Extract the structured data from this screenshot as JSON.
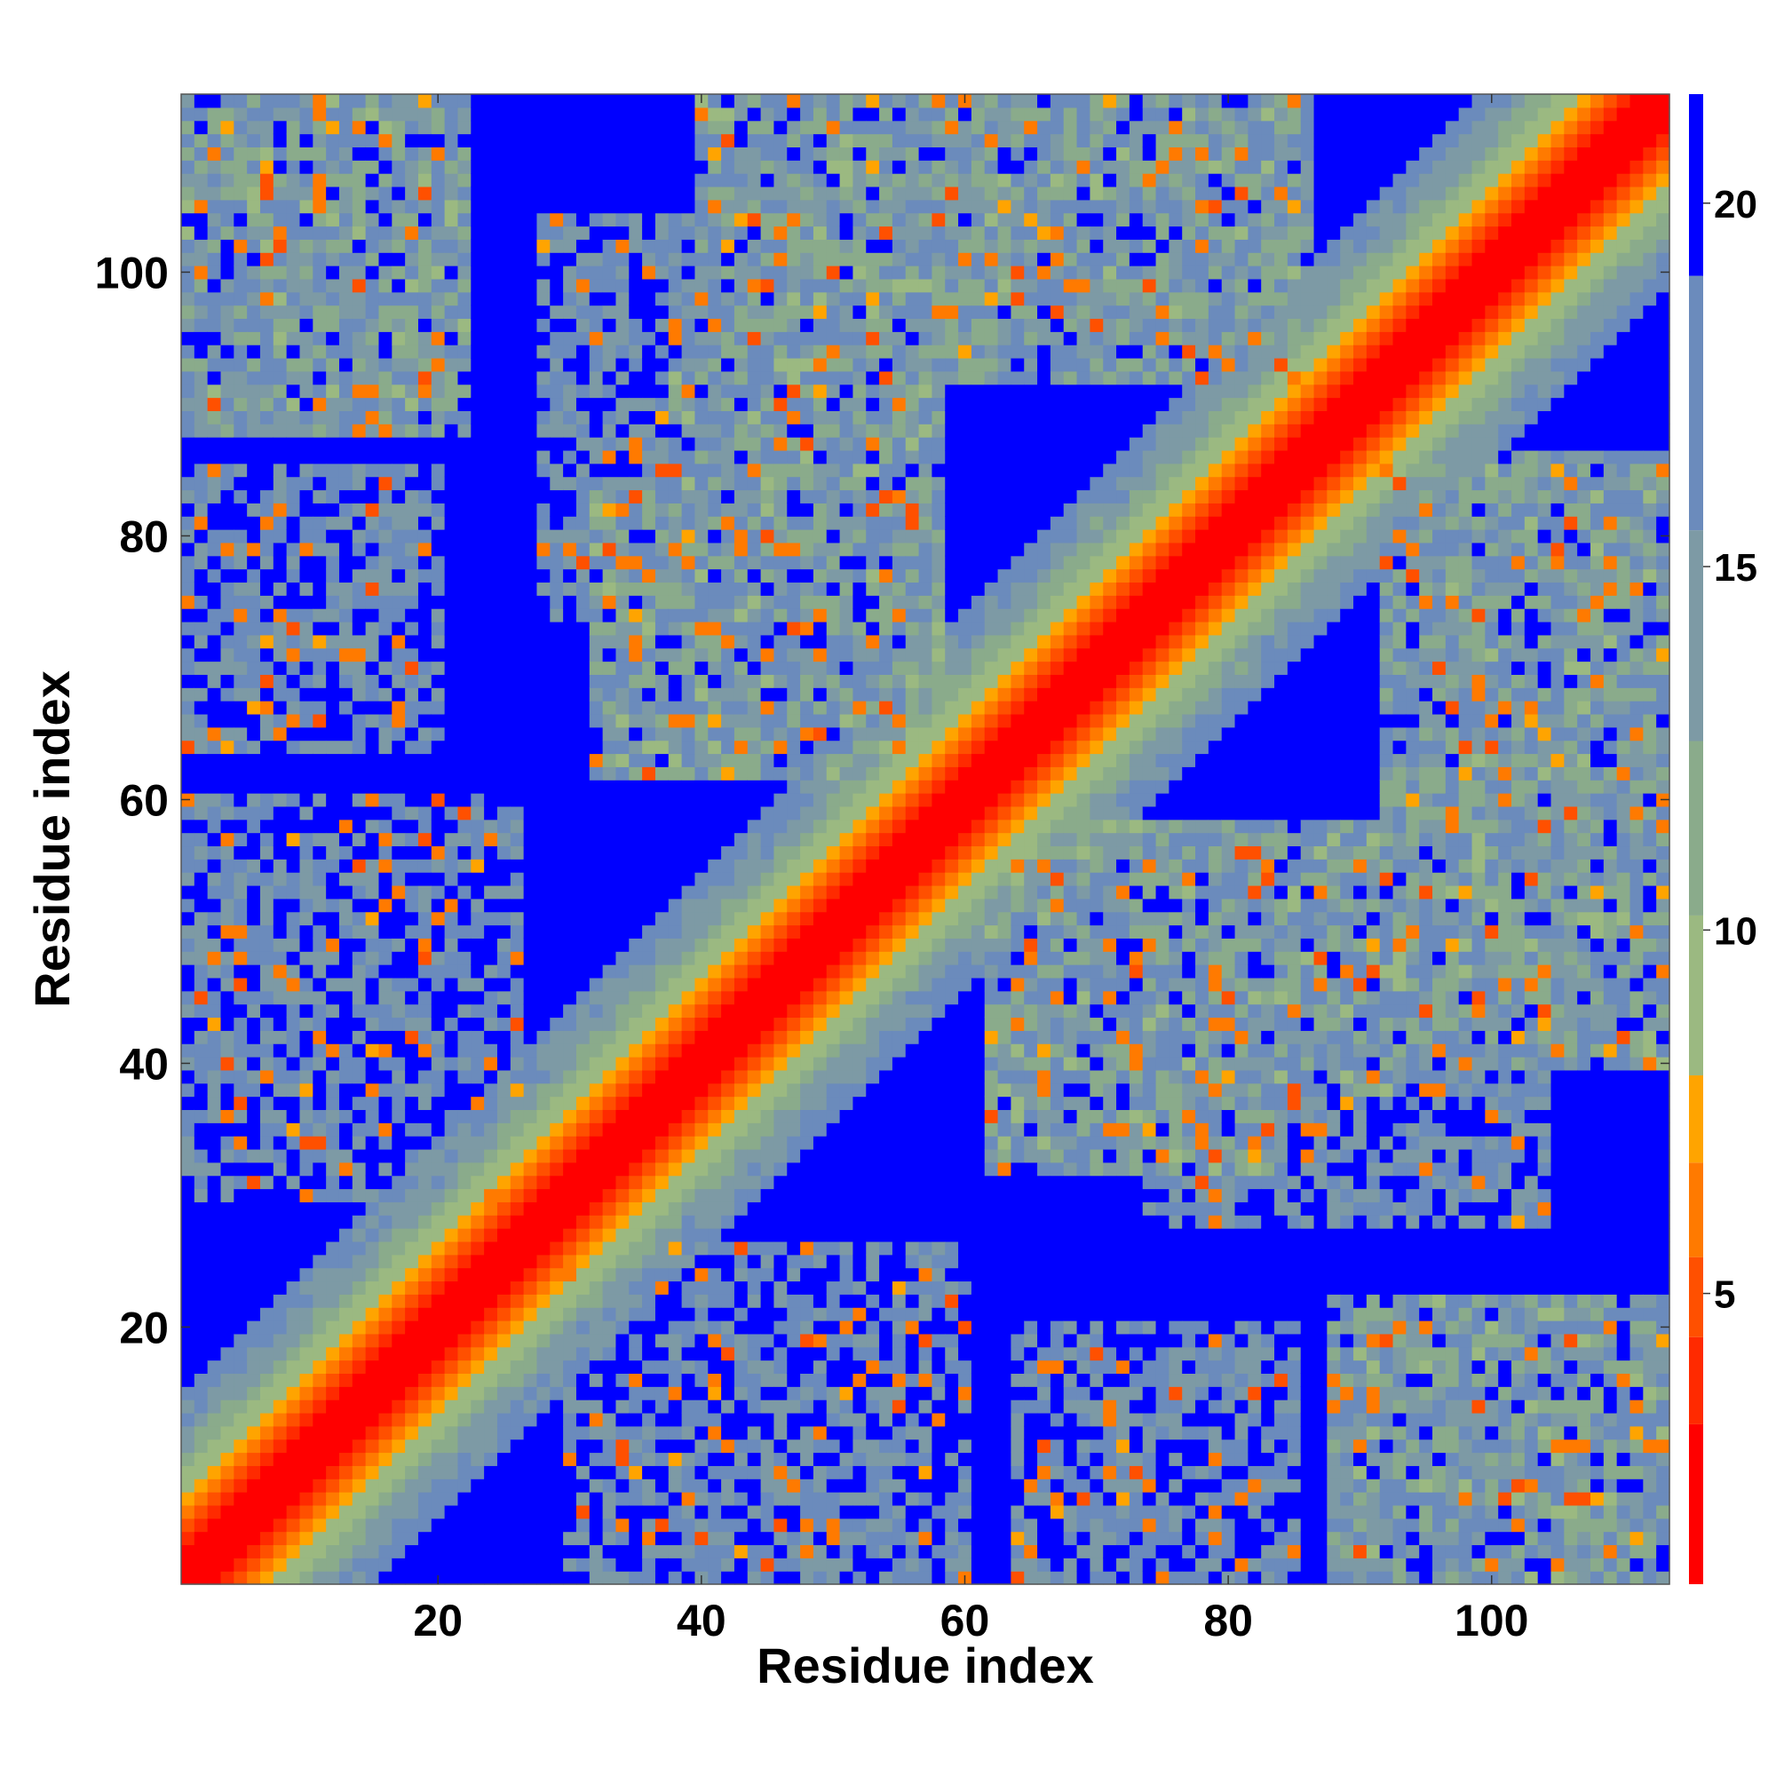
{
  "chart_data": {
    "type": "heatmap",
    "title": "",
    "xlabel": "Residue index",
    "ylabel": "Residue index",
    "xlim": [
      1,
      113
    ],
    "ylim": [
      1,
      113
    ],
    "xticks": [
      20,
      40,
      60,
      80,
      100
    ],
    "yticks": [
      20,
      40,
      60,
      80,
      100
    ],
    "xtick_labels": [
      "20",
      "40",
      "60",
      "80",
      "100"
    ],
    "ytick_labels": [
      "20",
      "40",
      "60",
      "80",
      "100"
    ],
    "n_residues": 113,
    "matrix_quantity": "pairwise residue distance (symmetric contact map)",
    "colorbar": {
      "ticks": [
        5,
        10,
        15,
        20
      ],
      "tick_labels": [
        "5",
        "10",
        "15",
        "20"
      ],
      "range": [
        1,
        21.5
      ],
      "bands": [
        {
          "from": 1.0,
          "to": 3.2,
          "color": "#ff0000"
        },
        {
          "from": 3.2,
          "to": 4.4,
          "color": "#ff2a00"
        },
        {
          "from": 4.4,
          "to": 5.5,
          "color": "#ff5000"
        },
        {
          "from": 5.5,
          "to": 6.8,
          "color": "#ff7a00"
        },
        {
          "from": 6.8,
          "to": 8.0,
          "color": "#ffa400"
        },
        {
          "from": 8.0,
          "to": 10.2,
          "color": "#9bb981"
        },
        {
          "from": 10.2,
          "to": 12.6,
          "color": "#8aab8b"
        },
        {
          "from": 12.6,
          "to": 15.5,
          "color": "#7d9aa5"
        },
        {
          "from": 15.5,
          "to": 19.0,
          "color": "#6b8bbc"
        },
        {
          "from": 19.0,
          "to": 21.5,
          "color": "#0000ff"
        }
      ]
    },
    "structure": {
      "diagonal_band_width": 14,
      "off_diagonal_contact_blocks": [
        {
          "x": [
            1,
            22
          ],
          "y": [
            88,
            113
          ],
          "level": "near"
        },
        {
          "x": [
            1,
            20
          ],
          "y": [
            64,
            85
          ],
          "level": "mid"
        },
        {
          "x": [
            1,
            24
          ],
          "y": [
            32,
            60
          ],
          "level": "mid"
        },
        {
          "x": [
            40,
            80
          ],
          "y": [
            92,
            113
          ],
          "level": "near"
        },
        {
          "x": [
            32,
            55
          ],
          "y": [
            62,
            84
          ],
          "level": "near"
        },
        {
          "x": [
            62,
            92
          ],
          "y": [
            38,
            58
          ],
          "level": "near"
        },
        {
          "x": [
            92,
            113
          ],
          "y": [
            42,
            86
          ],
          "level": "near"
        },
        {
          "x": [
            30,
            60
          ],
          "y": [
            2,
            26
          ],
          "level": "mid"
        },
        {
          "x": [
            64,
            80
          ],
          "y": [
            2,
            20
          ],
          "level": "mid"
        },
        {
          "x": [
            90,
            113
          ],
          "y": [
            1,
            22
          ],
          "level": "near"
        },
        {
          "x": [
            74,
            104
          ],
          "y": [
            28,
            50
          ],
          "level": "mid"
        }
      ]
    }
  }
}
